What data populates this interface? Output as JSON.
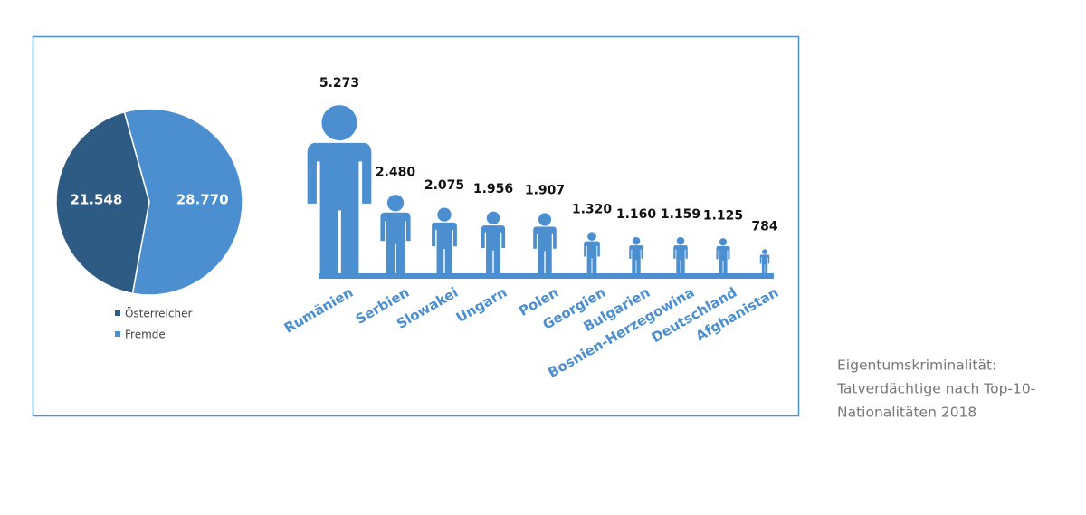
{
  "chart_data": [
    {
      "type": "pie",
      "categories": [
        "Österreicher",
        "Fremde"
      ],
      "values": [
        21548,
        28770
      ],
      "value_labels": [
        "21.548",
        "28.770"
      ],
      "colors": [
        "#2d5b84",
        "#4b8fd0"
      ],
      "legend": "bottom"
    },
    {
      "type": "pictograph",
      "categories": [
        "Rumänien",
        "Serbien",
        "Slowakei",
        "Ungarn",
        "Polen",
        "Georgien",
        "Bulgarien",
        "Bosnien-Herzegowina",
        "Deutschland",
        "Afghanistan"
      ],
      "values": [
        5273,
        2480,
        2075,
        1956,
        1907,
        1320,
        1160,
        1159,
        1125,
        784
      ],
      "value_labels": [
        "5.273",
        "2.480",
        "2.075",
        "1.956",
        "1.907",
        "1.320",
        "1.160",
        "1.159",
        "1.125",
        "784"
      ],
      "color": "#4b8fd0"
    }
  ],
  "caption": [
    "Eigentumskriminalität:",
    "Tatverdächtige nach Top-10-",
    "Nationalitäten 2018"
  ]
}
